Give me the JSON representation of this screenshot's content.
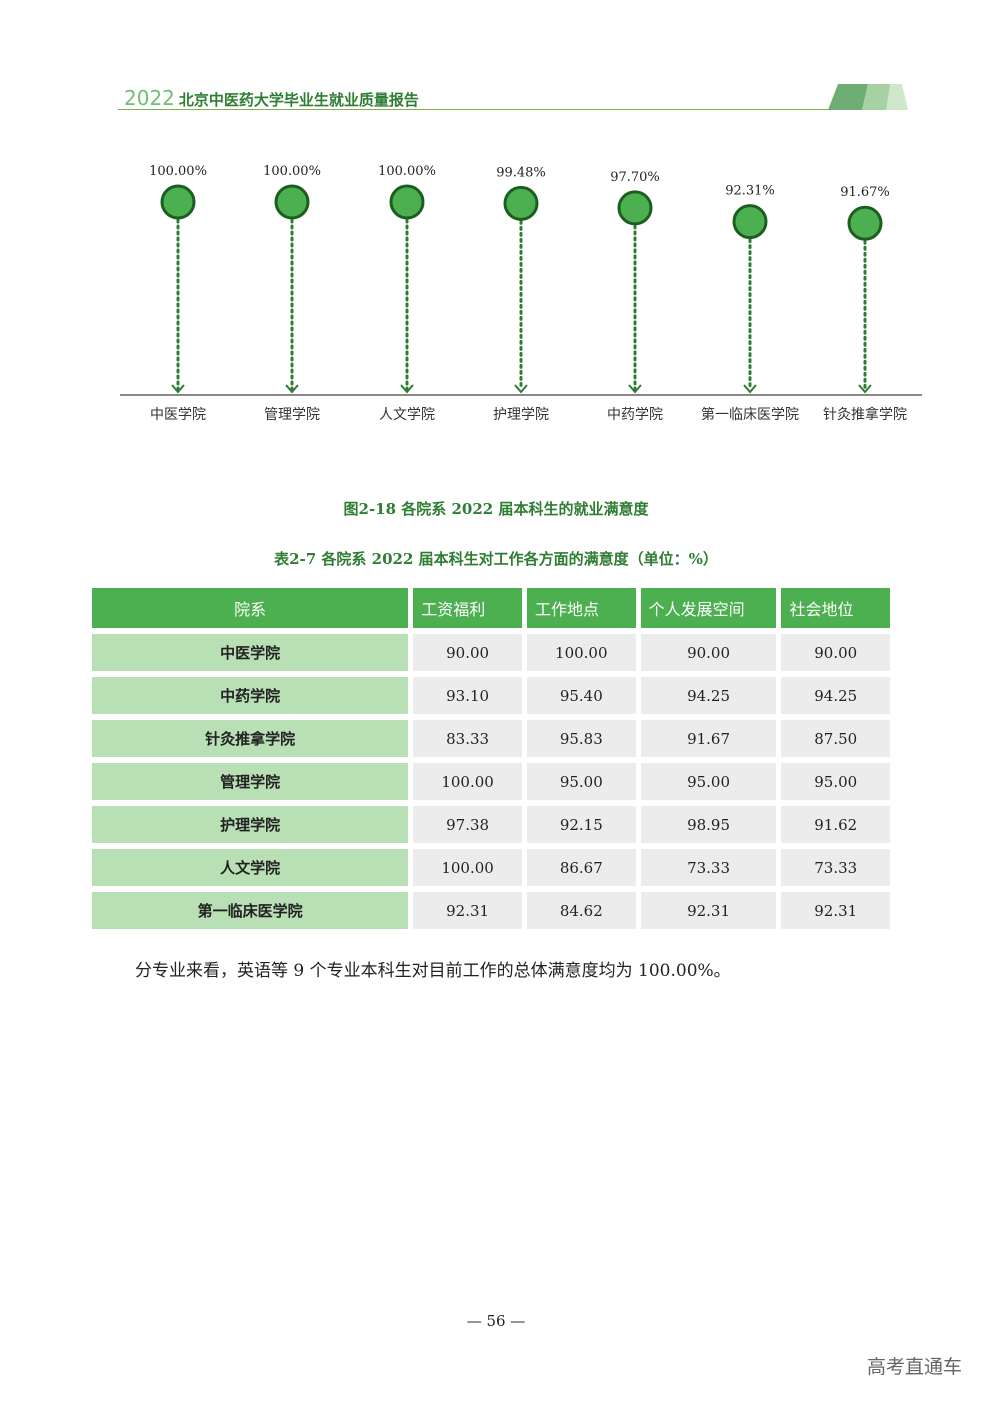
{
  "header": {
    "year": "2022",
    "title": "北京中医药大学毕业生就业质量报告"
  },
  "chart_data": {
    "type": "lollipop",
    "categories": [
      "中医学院",
      "管理学院",
      "人文学院",
      "护理学院",
      "中药学院",
      "第一临床医学院",
      "针灸推拿学院"
    ],
    "values": [
      100.0,
      100.0,
      100.0,
      99.48,
      97.7,
      92.31,
      91.67
    ],
    "labels": [
      "100.00%",
      "100.00%",
      "100.00%",
      "99.48%",
      "97.70%",
      "92.31%",
      "91.67%"
    ],
    "colors": {
      "marker": "#4caf50",
      "marker_stroke": "#1b5e20",
      "line": "#2e7d32"
    }
  },
  "figure_caption": "图2-18  各院系 2022 届本科生的就业满意度",
  "table_caption": "表2-7  各院系 2022 届本科生对工作各方面的满意度（单位：%）",
  "table": {
    "headers": [
      "院系",
      "工资福利",
      "工作地点",
      "个人发展空间",
      "社会地位"
    ],
    "rows": [
      [
        "中医学院",
        "90.00",
        "100.00",
        "90.00",
        "90.00"
      ],
      [
        "中药学院",
        "93.10",
        "95.40",
        "94.25",
        "94.25"
      ],
      [
        "针灸推拿学院",
        "83.33",
        "95.83",
        "91.67",
        "87.50"
      ],
      [
        "管理学院",
        "100.00",
        "95.00",
        "95.00",
        "95.00"
      ],
      [
        "护理学院",
        "97.38",
        "92.15",
        "98.95",
        "91.62"
      ],
      [
        "人文学院",
        "100.00",
        "86.67",
        "73.33",
        "73.33"
      ],
      [
        "第一临床医学院",
        "92.31",
        "84.62",
        "92.31",
        "92.31"
      ]
    ]
  },
  "paragraph": "分专业来看，英语等 9 个专业本科生对目前工作的总体满意度均为 100.00%。",
  "page_number": "— 56 —",
  "watermark": "高考直通车"
}
